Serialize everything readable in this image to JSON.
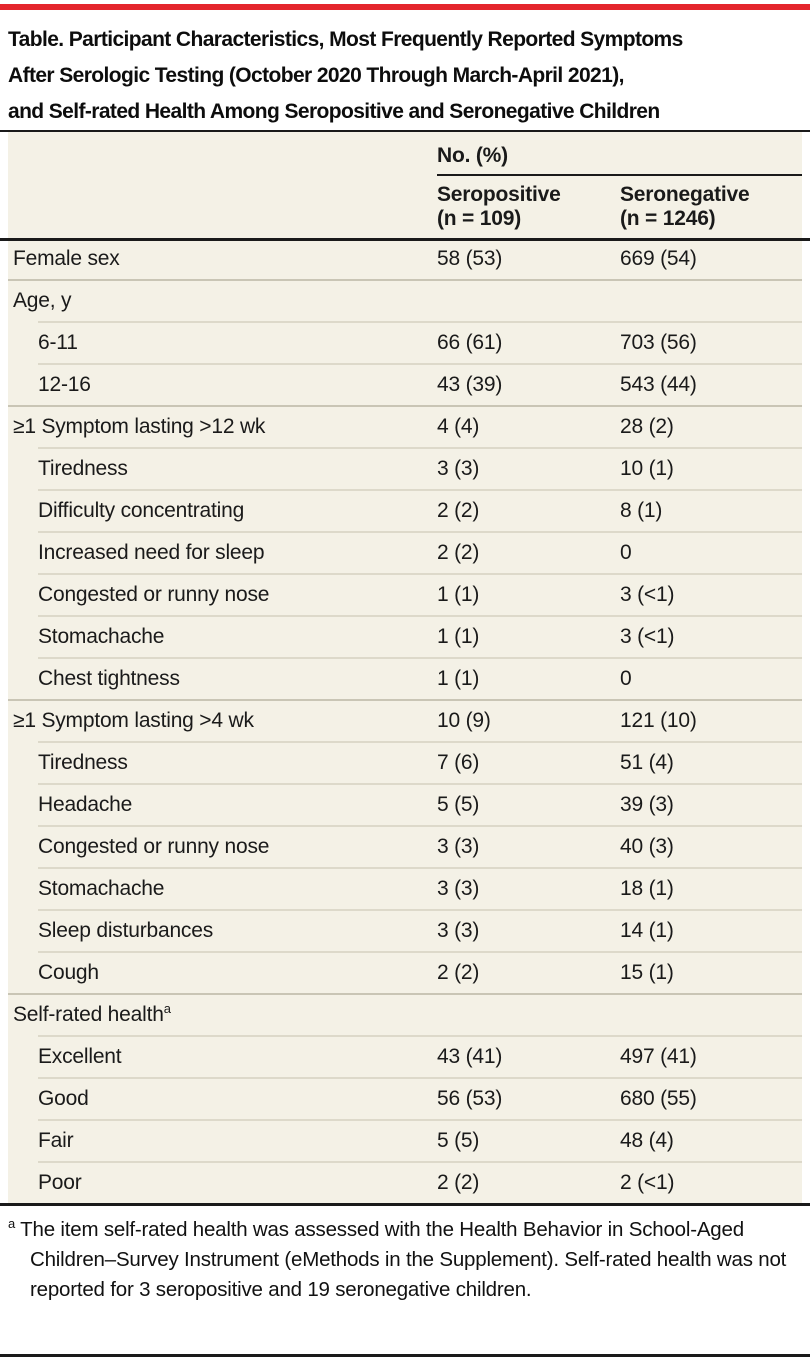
{
  "accent_color": "#e4262c",
  "title": "Table. Participant Characteristics, Most Frequently Reported Symptoms After Serologic Testing (October 2020 Through March-April 2021), and Self-rated Health Among Seropositive and Seronegative Children",
  "title_lines": [
    "Table. Participant Characteristics, Most Frequently Reported Symptoms",
    "After Serologic Testing (October 2020 Through March-April 2021),",
    "and Self-rated Health Among Seropositive and Seronegative Children"
  ],
  "table": {
    "group_header": "No. (%)",
    "columns": [
      {
        "name": "Seropositive",
        "n": "(n = 109)"
      },
      {
        "name": "Seronegative",
        "n": "(n = 1246)"
      }
    ],
    "rows": [
      {
        "label": "Female sex",
        "values": [
          "58 (53)",
          "669 (54)"
        ],
        "indent": false,
        "sep": "none"
      },
      {
        "label": "Age, y",
        "values": [
          "",
          ""
        ],
        "indent": false,
        "sep": "group"
      },
      {
        "label": "6-11",
        "values": [
          "66 (61)",
          "703 (56)"
        ],
        "indent": true,
        "sep": "sub"
      },
      {
        "label": "12-16",
        "values": [
          "43 (39)",
          "543 (44)"
        ],
        "indent": true,
        "sep": "sub"
      },
      {
        "label": "≥1 Symptom lasting >12 wk",
        "values": [
          "4 (4)",
          "28 (2)"
        ],
        "indent": false,
        "sep": "group"
      },
      {
        "label": "Tiredness",
        "values": [
          "3 (3)",
          "10 (1)"
        ],
        "indent": true,
        "sep": "sub"
      },
      {
        "label": "Difficulty concentrating",
        "values": [
          "2 (2)",
          "8 (1)"
        ],
        "indent": true,
        "sep": "sub"
      },
      {
        "label": "Increased need for sleep",
        "values": [
          "2 (2)",
          "0"
        ],
        "indent": true,
        "sep": "sub"
      },
      {
        "label": "Congested or runny nose",
        "values": [
          "1 (1)",
          "3 (<1)"
        ],
        "indent": true,
        "sep": "sub"
      },
      {
        "label": "Stomachache",
        "values": [
          "1 (1)",
          "3 (<1)"
        ],
        "indent": true,
        "sep": "sub"
      },
      {
        "label": "Chest tightness",
        "values": [
          "1 (1)",
          "0"
        ],
        "indent": true,
        "sep": "sub"
      },
      {
        "label": "≥1 Symptom lasting >4 wk",
        "values": [
          "10 (9)",
          "121 (10)"
        ],
        "indent": false,
        "sep": "group"
      },
      {
        "label": "Tiredness",
        "values": [
          "7 (6)",
          "51 (4)"
        ],
        "indent": true,
        "sep": "sub"
      },
      {
        "label": "Headache",
        "values": [
          "5 (5)",
          "39 (3)"
        ],
        "indent": true,
        "sep": "sub"
      },
      {
        "label": "Congested or runny nose",
        "values": [
          "3 (3)",
          "40 (3)"
        ],
        "indent": true,
        "sep": "sub"
      },
      {
        "label": "Stomachache",
        "values": [
          "3 (3)",
          "18 (1)"
        ],
        "indent": true,
        "sep": "sub"
      },
      {
        "label": "Sleep disturbances",
        "values": [
          "3 (3)",
          "14 (1)"
        ],
        "indent": true,
        "sep": "sub"
      },
      {
        "label": "Cough",
        "values": [
          "2 (2)",
          "15 (1)"
        ],
        "indent": true,
        "sep": "sub"
      },
      {
        "label": "Self-rated health",
        "sup": "a",
        "values": [
          "",
          ""
        ],
        "indent": false,
        "sep": "group"
      },
      {
        "label": "Excellent",
        "values": [
          "43 (41)",
          "497 (41)"
        ],
        "indent": true,
        "sep": "sub"
      },
      {
        "label": "Good",
        "values": [
          "56 (53)",
          "680 (55)"
        ],
        "indent": true,
        "sep": "sub"
      },
      {
        "label": "Fair",
        "values": [
          "5 (5)",
          "48 (4)"
        ],
        "indent": true,
        "sep": "sub"
      },
      {
        "label": "Poor",
        "values": [
          "2 (2)",
          "2 (<1)"
        ],
        "indent": true,
        "sep": "sub"
      }
    ]
  },
  "footnote": {
    "marker": "a",
    "text": "The item self-rated health was assessed with the Health Behavior in School-Aged Children–Survey Instrument (eMethods in the Supplement). Self-rated health was not reported for 3 seropositive and 19 seronegative children."
  }
}
